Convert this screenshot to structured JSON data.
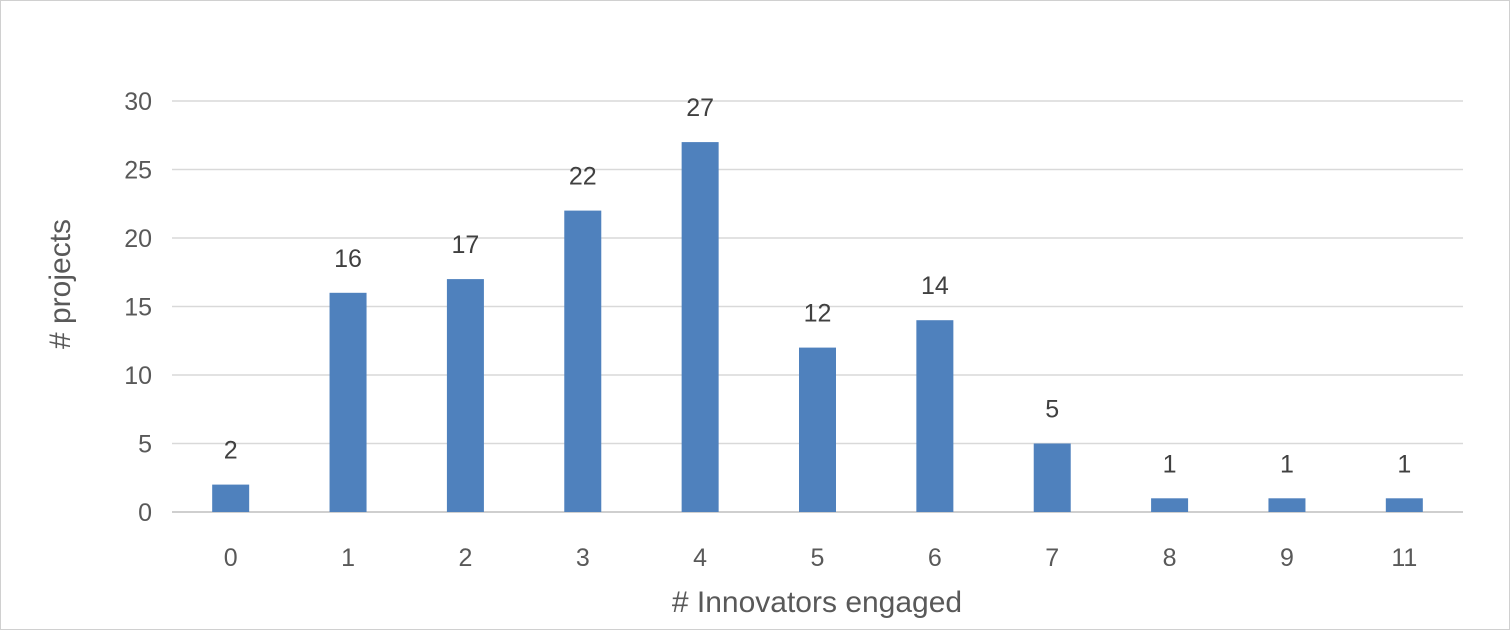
{
  "chart_data": {
    "type": "bar",
    "categories": [
      "0",
      "1",
      "2",
      "3",
      "4",
      "5",
      "6",
      "7",
      "8",
      "9",
      "11"
    ],
    "values": [
      2,
      16,
      17,
      22,
      27,
      12,
      14,
      5,
      1,
      1,
      1
    ],
    "data_labels": [
      "2",
      "16",
      "17",
      "22",
      "27",
      "12",
      "14",
      "5",
      "1",
      "1",
      "1"
    ],
    "title": "",
    "xlabel": "# Innovators engaged",
    "ylabel": "# projects",
    "ylim": [
      0,
      30
    ],
    "yticks": [
      "0",
      "5",
      "10",
      "15",
      "20",
      "25",
      "30"
    ],
    "grid": true,
    "legend": "none",
    "bar_color": "#4f81bd"
  }
}
